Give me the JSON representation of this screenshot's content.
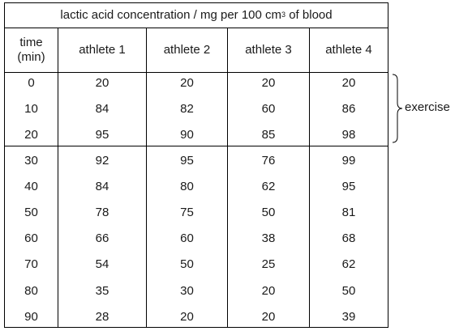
{
  "table": {
    "title_main": "lactic acid concentration / mg per 100 cm",
    "title_sup": "3",
    "title_tail": " of blood",
    "headers": [
      "time\n(min)",
      "athlete 1",
      "athlete 2",
      "athlete 3",
      "athlete 4"
    ],
    "rows": [
      [
        "0",
        "20",
        "20",
        "20",
        "20"
      ],
      [
        "10",
        "84",
        "82",
        "60",
        "86"
      ],
      [
        "20",
        "95",
        "90",
        "85",
        "98"
      ],
      [
        "30",
        "92",
        "95",
        "76",
        "99"
      ],
      [
        "40",
        "84",
        "80",
        "62",
        "95"
      ],
      [
        "50",
        "78",
        "75",
        "50",
        "81"
      ],
      [
        "60",
        "66",
        "60",
        "38",
        "68"
      ],
      [
        "70",
        "54",
        "50",
        "25",
        "62"
      ],
      [
        "80",
        "35",
        "30",
        "20",
        "50"
      ],
      [
        "90",
        "28",
        "20",
        "20",
        "39"
      ]
    ]
  },
  "annotation": {
    "label": "exercise"
  }
}
